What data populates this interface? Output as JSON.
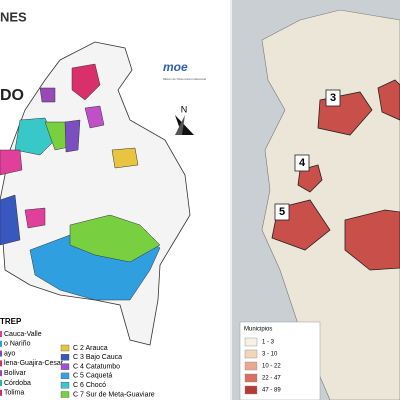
{
  "left_map": {
    "title_fragment": "NES",
    "subtitle_fragment": "DO",
    "logo": "moe",
    "logo_caption": "Misión de Observación Electoral",
    "north": "N",
    "legend_title": "TREP",
    "legend_left": [
      {
        "label": "Cauca-Valle",
        "color": "#e0409a"
      },
      {
        "label": "o Nariño",
        "color": "#2d9fd8"
      },
      {
        "label": "ayo",
        "color": "#7b4fc0"
      },
      {
        "label": "lena-Guajira-Cesar",
        "color": "#d8306a"
      },
      {
        "label": "Bolívar",
        "color": "#9848b8"
      },
      {
        "label": "Córdoba",
        "color": "#2fb8a0"
      },
      {
        "label": "Tolima",
        "color": "#c03070"
      }
    ],
    "legend_right": [
      {
        "label": "C 2 Arauca",
        "color": "#e8c440"
      },
      {
        "label": "C 3 Bajo Cauca",
        "color": "#3858c0"
      },
      {
        "label": "C 4 Catatumbo",
        "color": "#a050d8"
      },
      {
        "label": "C 5 Caquetá",
        "color": "#38a0e0"
      },
      {
        "label": "C 6 Chocó",
        "color": "#38c8c8"
      },
      {
        "label": "C 7 Sur de Meta-Guaviare",
        "color": "#78d040"
      }
    ]
  },
  "right_map": {
    "zone_labels": [
      "3",
      "4",
      "5"
    ],
    "legend_title": "Municipios",
    "legend": [
      {
        "label": "1 - 3",
        "color": "#f6f1e4"
      },
      {
        "label": "3 - 10",
        "color": "#f2d6b8"
      },
      {
        "label": "10 - 22",
        "color": "#e8a890"
      },
      {
        "label": "22 - 47",
        "color": "#d87060"
      },
      {
        "label": "47 - 89",
        "color": "#b83a34"
      }
    ]
  }
}
